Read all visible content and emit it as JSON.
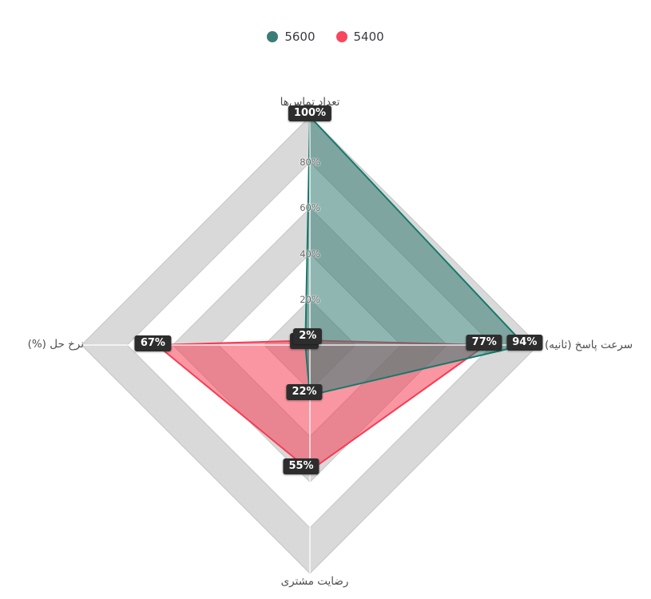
{
  "legend": {
    "items": [
      {
        "label": "5600",
        "color": "#3B7D76"
      },
      {
        "label": "5400",
        "color": "#F8475C"
      }
    ]
  },
  "chart_data": {
    "type": "radar",
    "shape": "diamond (4 axes: top, right, bottom, left)",
    "indicators": [
      {
        "name": "تعداد تماس‌ها",
        "max": 100,
        "position": "top"
      },
      {
        "name": "سرعت پاسخ (ثانیه)",
        "max": 100,
        "position": "right"
      },
      {
        "name": "رضایت مشتری",
        "max": 100,
        "position": "bottom"
      },
      {
        "name": "نرخ حل (%)",
        "max": 100,
        "position": "left"
      }
    ],
    "tick_labels": [
      "20%",
      "40%",
      "60%",
      "80%"
    ],
    "series": [
      {
        "name": "5600",
        "line_color": "#15796A",
        "fill_color": "rgba(52,122,115,0.55)",
        "values": [
          100,
          94,
          22,
          2
        ],
        "point_labels": [
          "100%",
          "94%",
          "22%",
          "2%"
        ]
      },
      {
        "name": "5400",
        "line_color": "#F93B52",
        "fill_color": "rgba(244,63,86,0.55)",
        "values": [
          2,
          77,
          55,
          67
        ],
        "point_labels": [
          "2%",
          "77%",
          "55%",
          "67%"
        ]
      }
    ],
    "grid": {
      "rings": 5,
      "band_colors_outer_to_inner": [
        "#d9d9d9",
        "#ffffff",
        "#d9d9d9",
        "#ffffff",
        "#d9d9d9"
      ],
      "ring_line_color": "#c6c6c6"
    },
    "value_label_style": {
      "background": "#2D2D2D",
      "text_color": "#FFFFFF"
    }
  }
}
